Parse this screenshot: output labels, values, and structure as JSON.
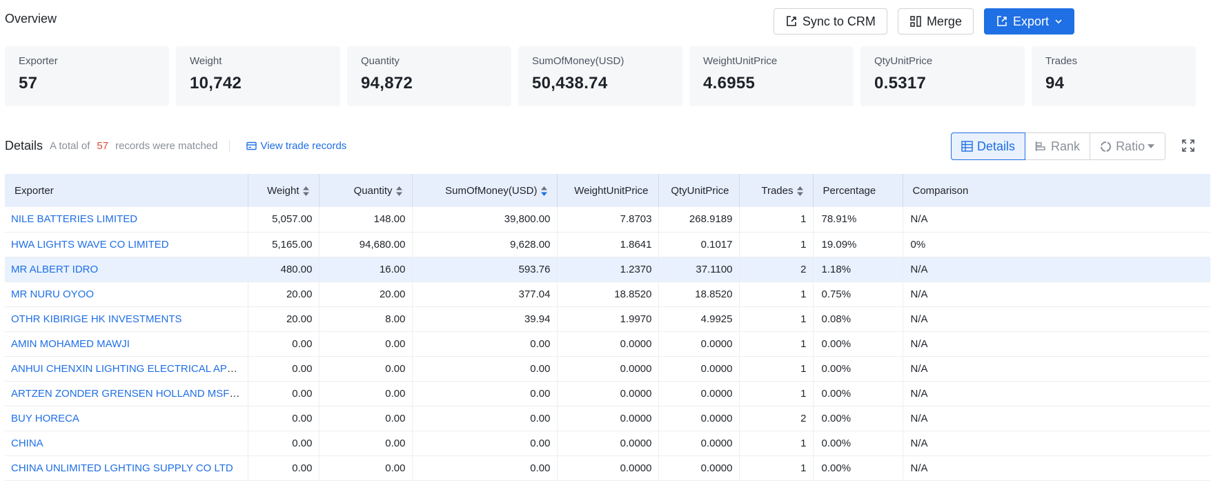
{
  "overview": {
    "title": "Overview"
  },
  "actions": {
    "sync": "Sync to CRM",
    "merge": "Merge",
    "export": "Export"
  },
  "stats": [
    {
      "label": "Exporter",
      "value": "57"
    },
    {
      "label": "Weight",
      "value": "10,742"
    },
    {
      "label": "Quantity",
      "value": "94,872"
    },
    {
      "label": "SumOfMoney(USD)",
      "value": "50,438.74"
    },
    {
      "label": "WeightUnitPrice",
      "value": "4.6955"
    },
    {
      "label": "QtyUnitPrice",
      "value": "0.5317"
    },
    {
      "label": "Trades",
      "value": "94"
    }
  ],
  "details": {
    "title": "Details",
    "prefix": "A total of",
    "count": "57",
    "suffix": "records were matched",
    "view_link": "View trade records"
  },
  "view_toggle": {
    "details": "Details",
    "rank": "Rank",
    "ratio": "Ratio"
  },
  "colors": {
    "accent": "#1f6fe5",
    "count": "#e0493a",
    "header_bg": "#e8effc"
  },
  "table": {
    "headers": {
      "exporter": "Exporter",
      "weight": "Weight",
      "quantity": "Quantity",
      "sum": "SumOfMoney(USD)",
      "wup": "WeightUnitPrice",
      "qup": "QtyUnitPrice",
      "trades": "Trades",
      "percentage": "Percentage",
      "comparison": "Comparison"
    },
    "rows": [
      {
        "exporter": "NILE BATTERIES LIMITED",
        "weight": "5,057.00",
        "quantity": "148.00",
        "sum": "39,800.00",
        "wup": "7.8703",
        "qup": "268.9189",
        "trades": "1",
        "percentage": "78.91%",
        "comparison": "N/A"
      },
      {
        "exporter": "HWA LIGHTS WAVE CO LIMITED",
        "weight": "5,165.00",
        "quantity": "94,680.00",
        "sum": "9,628.00",
        "wup": "1.8641",
        "qup": "0.1017",
        "trades": "1",
        "percentage": "19.09%",
        "comparison": "0%"
      },
      {
        "exporter": "MR ALBERT IDRO",
        "weight": "480.00",
        "quantity": "16.00",
        "sum": "593.76",
        "wup": "1.2370",
        "qup": "37.1100",
        "trades": "2",
        "percentage": "1.18%",
        "comparison": "N/A"
      },
      {
        "exporter": "MR NURU OYOO",
        "weight": "20.00",
        "quantity": "20.00",
        "sum": "377.04",
        "wup": "18.8520",
        "qup": "18.8520",
        "trades": "1",
        "percentage": "0.75%",
        "comparison": "N/A"
      },
      {
        "exporter": "OTHR KIBIRIGE HK INVESTMENTS",
        "weight": "20.00",
        "quantity": "8.00",
        "sum": "39.94",
        "wup": "1.9970",
        "qup": "4.9925",
        "trades": "1",
        "percentage": "0.08%",
        "comparison": "N/A"
      },
      {
        "exporter": "AMIN MOHAMED MAWJI",
        "weight": "0.00",
        "quantity": "0.00",
        "sum": "0.00",
        "wup": "0.0000",
        "qup": "0.0000",
        "trades": "1",
        "percentage": "0.00%",
        "comparison": "N/A"
      },
      {
        "exporter": "ANHUI CHENXIN LIGHTING ELECTRICAL APPLIANCE ...",
        "weight": "0.00",
        "quantity": "0.00",
        "sum": "0.00",
        "wup": "0.0000",
        "qup": "0.0000",
        "trades": "1",
        "percentage": "0.00%",
        "comparison": "N/A"
      },
      {
        "exporter": "ARTZEN ZONDER GRENSEN HOLLAND MSF HOLLAND",
        "weight": "0.00",
        "quantity": "0.00",
        "sum": "0.00",
        "wup": "0.0000",
        "qup": "0.0000",
        "trades": "1",
        "percentage": "0.00%",
        "comparison": "N/A"
      },
      {
        "exporter": "BUY HORECA",
        "weight": "0.00",
        "quantity": "0.00",
        "sum": "0.00",
        "wup": "0.0000",
        "qup": "0.0000",
        "trades": "2",
        "percentage": "0.00%",
        "comparison": "N/A"
      },
      {
        "exporter": "CHINA",
        "weight": "0.00",
        "quantity": "0.00",
        "sum": "0.00",
        "wup": "0.0000",
        "qup": "0.0000",
        "trades": "1",
        "percentage": "0.00%",
        "comparison": "N/A"
      },
      {
        "exporter": "CHINA UNLIMITED LGHTING SUPPLY CO LTD",
        "weight": "0.00",
        "quantity": "0.00",
        "sum": "0.00",
        "wup": "0.0000",
        "qup": "0.0000",
        "trades": "1",
        "percentage": "0.00%",
        "comparison": "N/A"
      }
    ]
  }
}
